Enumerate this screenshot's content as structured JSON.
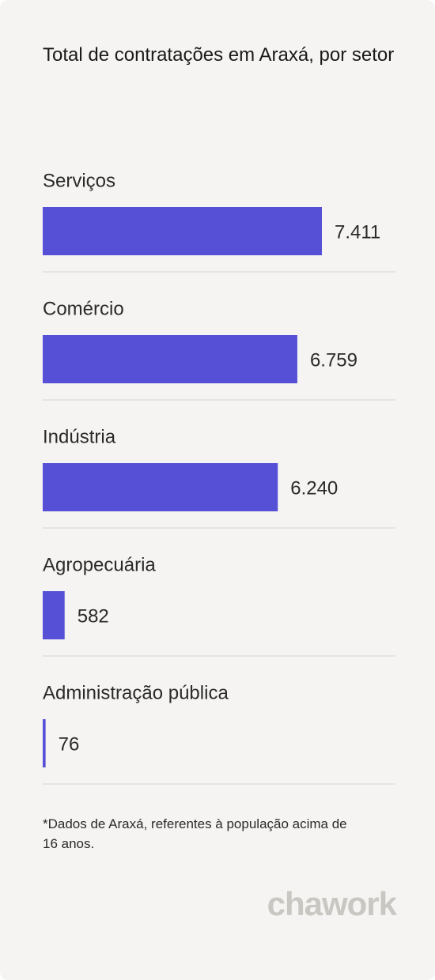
{
  "chart_data": {
    "type": "bar",
    "orientation": "horizontal",
    "title": "Total de contratações em Araxá, por setor",
    "categories": [
      "Serviços",
      "Comércio",
      "Indústria",
      "Agropecuária",
      "Administração pública"
    ],
    "values": [
      7411,
      6759,
      6240,
      582,
      76
    ],
    "value_labels": [
      "7.411",
      "6.759",
      "6.240",
      "582",
      "76"
    ],
    "color": "#5550d6",
    "footnote": "*Dados de Araxá, referentes à população acima de 16 anos.",
    "brand": "chawork"
  }
}
